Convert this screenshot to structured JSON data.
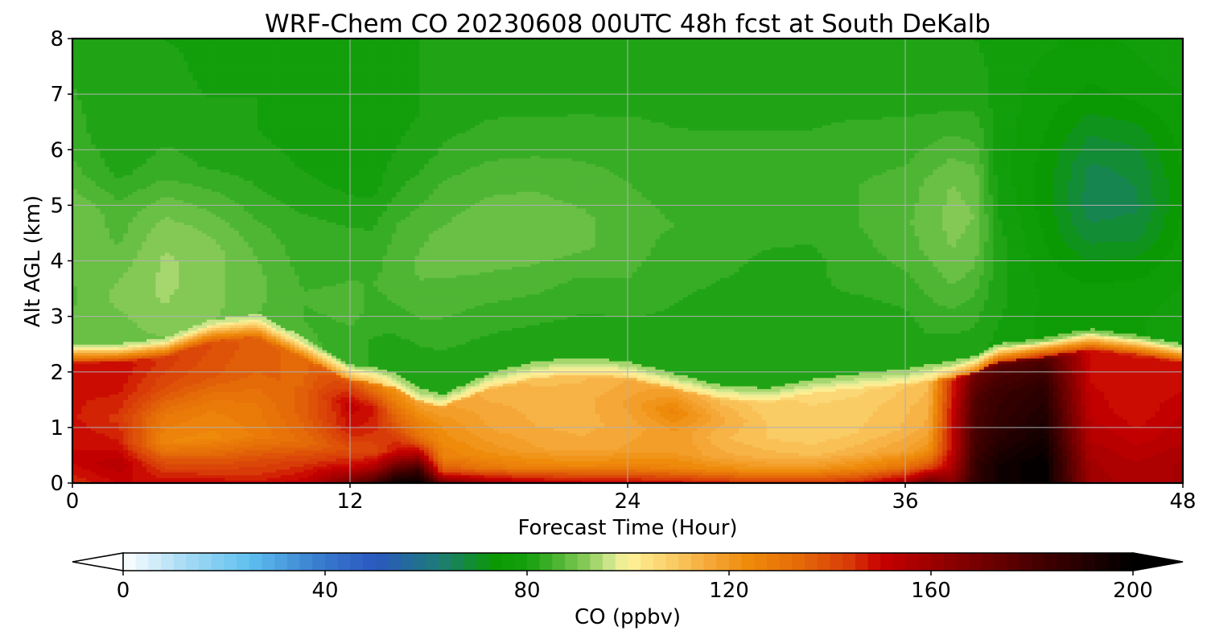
{
  "chart_data": {
    "type": "heatmap",
    "title": "WRF-Chem CO  20230608 00UTC 48h fcst at South DeKalb",
    "xlabel": "Forecast Time (Hour)",
    "ylabel": "Alt AGL (km)",
    "xlim": [
      0,
      48
    ],
    "ylim": [
      0,
      8
    ],
    "xticks": [
      0,
      12,
      24,
      36,
      48
    ],
    "yticks": [
      0,
      1,
      2,
      3,
      4,
      5,
      6,
      7,
      8
    ],
    "grid": true,
    "x_hours": [
      0,
      2,
      4,
      6,
      8,
      10,
      12,
      13,
      14,
      15,
      16,
      18,
      20,
      22,
      24,
      26,
      28,
      30,
      32,
      34,
      36,
      37,
      38,
      39,
      40,
      42,
      44,
      46,
      48
    ],
    "alt_km": [
      0,
      0.1,
      0.3,
      0.6,
      1.0,
      1.4,
      1.8,
      2.0,
      2.2,
      2.4,
      2.6,
      3.0,
      3.5,
      4.0,
      5.0,
      6.0,
      7.0,
      8.0
    ],
    "pbl_top_km": [
      2.35,
      2.35,
      2.45,
      2.75,
      2.85,
      2.45,
      2.0,
      1.95,
      1.85,
      1.6,
      1.5,
      1.85,
      2.05,
      2.12,
      2.05,
      1.85,
      1.65,
      1.6,
      1.75,
      1.85,
      1.92,
      2.0,
      2.05,
      2.15,
      2.35,
      2.45,
      2.6,
      2.5,
      2.35
    ],
    "free_troposphere_ppbv": [
      [
        90,
        88,
        87,
        88,
        90,
        90,
        86,
        84,
        83,
        82,
        82
      ],
      [
        88,
        89,
        91,
        89,
        87,
        86,
        82,
        80,
        80,
        80,
        80
      ],
      [
        89,
        92,
        93,
        93,
        92,
        89,
        84,
        82,
        81,
        81,
        80
      ],
      [
        90,
        91,
        91,
        91,
        89,
        86,
        82,
        81,
        80,
        79,
        79
      ],
      [
        87,
        88,
        88,
        87,
        85,
        83,
        81,
        80,
        80,
        79,
        79
      ],
      [
        86,
        85,
        85,
        84,
        84,
        82,
        80,
        79,
        79,
        79,
        79
      ],
      [
        84,
        84,
        86,
        85,
        84,
        82,
        79,
        78,
        78,
        78,
        78
      ],
      [
        82,
        82,
        84,
        85,
        84,
        82,
        79,
        78,
        78,
        78,
        78
      ],
      [
        80,
        81,
        84,
        86,
        86,
        85,
        82,
        80,
        79,
        79,
        79
      ],
      [
        80,
        81,
        84,
        87,
        88,
        87,
        84,
        81,
        80,
        80,
        80
      ],
      [
        80,
        81,
        84,
        86,
        88,
        88,
        86,
        83,
        81,
        81,
        81
      ],
      [
        80,
        81,
        84,
        86,
        89,
        89,
        87,
        84,
        82,
        81,
        81
      ],
      [
        80,
        81,
        84,
        86,
        89,
        89,
        87,
        84,
        82,
        81,
        81
      ],
      [
        80,
        81,
        83,
        85,
        88,
        88,
        86,
        84,
        82,
        81,
        81
      ],
      [
        80,
        81,
        83,
        85,
        86,
        86,
        85,
        84,
        82,
        81,
        81
      ],
      [
        80,
        81,
        82,
        83,
        84,
        85,
        84,
        83,
        82,
        81,
        80
      ],
      [
        80,
        80,
        81,
        82,
        83,
        84,
        84,
        83,
        82,
        81,
        80
      ],
      [
        80,
        80,
        81,
        82,
        82,
        83,
        83,
        83,
        82,
        81,
        80
      ],
      [
        80,
        80,
        81,
        82,
        82,
        83,
        84,
        83,
        82,
        81,
        80
      ],
      [
        80,
        80,
        81,
        83,
        84,
        85,
        85,
        84,
        82,
        81,
        80
      ],
      [
        80,
        81,
        82,
        84,
        86,
        87,
        86,
        84,
        82,
        81,
        80
      ],
      [
        81,
        82,
        84,
        86,
        88,
        89,
        88,
        85,
        82,
        81,
        81
      ],
      [
        81,
        82,
        85,
        88,
        90,
        91,
        90,
        86,
        82,
        81,
        81
      ],
      [
        80,
        82,
        84,
        87,
        89,
        90,
        89,
        85,
        82,
        81,
        80
      ],
      [
        79,
        80,
        81,
        81,
        81,
        80,
        79,
        79,
        79,
        79,
        79
      ],
      [
        77,
        77,
        77,
        76,
        75,
        74,
        74,
        75,
        76,
        77,
        78
      ],
      [
        76,
        76,
        75,
        72,
        68,
        66,
        67,
        70,
        74,
        76,
        77
      ],
      [
        77,
        77,
        76,
        73,
        69,
        67,
        68,
        71,
        75,
        77,
        78
      ],
      [
        80,
        79,
        78,
        77,
        76,
        75,
        75,
        76,
        77,
        79,
        80
      ]
    ],
    "boundary_layer_ppbv": [
      [
        145,
        150,
        150,
        148,
        148,
        148,
        140
      ],
      [
        150,
        155,
        148,
        144,
        148,
        150,
        144
      ],
      [
        150,
        140,
        125,
        130,
        140,
        144,
        140
      ],
      [
        150,
        138,
        124,
        128,
        138,
        140,
        136
      ],
      [
        148,
        140,
        128,
        130,
        135,
        136,
        130
      ],
      [
        152,
        144,
        133,
        136,
        135,
        134,
        126
      ],
      [
        170,
        150,
        140,
        148,
        152,
        140,
        118
      ],
      [
        182,
        155,
        140,
        146,
        148,
        130,
        112
      ],
      [
        198,
        175,
        150,
        140,
        132,
        122,
        104
      ],
      [
        200,
        185,
        160,
        132,
        126,
        118,
        100
      ],
      [
        172,
        140,
        128,
        124,
        122,
        118,
        104
      ],
      [
        160,
        130,
        122,
        118,
        116,
        114,
        104
      ],
      [
        155,
        126,
        118,
        115,
        114,
        112,
        104
      ],
      [
        152,
        125,
        116,
        114,
        114,
        112,
        105
      ],
      [
        152,
        126,
        118,
        116,
        118,
        115,
        106
      ],
      [
        150,
        126,
        120,
        120,
        126,
        118,
        105
      ],
      [
        148,
        124,
        116,
        113,
        116,
        112,
        104
      ],
      [
        145,
        122,
        114,
        110,
        110,
        108,
        102
      ],
      [
        145,
        121,
        112,
        108,
        108,
        107,
        102
      ],
      [
        148,
        125,
        114,
        110,
        109,
        107,
        102
      ],
      [
        160,
        132,
        118,
        113,
        112,
        110,
        103
      ],
      [
        175,
        140,
        122,
        116,
        114,
        112,
        104
      ],
      [
        165,
        155,
        150,
        150,
        148,
        145,
        118
      ],
      [
        185,
        185,
        182,
        180,
        178,
        172,
        130
      ],
      [
        195,
        195,
        190,
        186,
        184,
        176,
        140
      ],
      [
        200,
        200,
        196,
        192,
        188,
        180,
        148
      ],
      [
        160,
        158,
        155,
        152,
        150,
        150,
        140
      ],
      [
        155,
        155,
        152,
        148,
        148,
        148,
        140
      ],
      [
        158,
        158,
        155,
        153,
        150,
        150,
        142
      ]
    ]
  },
  "colorbar": {
    "label": "CO  (ppbv)",
    "min": 0,
    "max": 200,
    "step": 2.5,
    "ticks": [
      0,
      40,
      80,
      120,
      160,
      200
    ],
    "extend": "both",
    "stops": [
      {
        "v": 0,
        "c": "#ffffff"
      },
      {
        "v": 12,
        "c": "#a8dcf5"
      },
      {
        "v": 25,
        "c": "#5fc0f0"
      },
      {
        "v": 38,
        "c": "#3a7fd0"
      },
      {
        "v": 50,
        "c": "#2a58c0"
      },
      {
        "v": 62,
        "c": "#1e7a7c"
      },
      {
        "v": 74,
        "c": "#0b9a00"
      },
      {
        "v": 80,
        "c": "#159f0f"
      },
      {
        "v": 86,
        "c": "#4cb532"
      },
      {
        "v": 92,
        "c": "#8ccc5a"
      },
      {
        "v": 96,
        "c": "#c8e48a"
      },
      {
        "v": 100,
        "c": "#fff29a"
      },
      {
        "v": 108,
        "c": "#fbd06a"
      },
      {
        "v": 116,
        "c": "#f5a838"
      },
      {
        "v": 124,
        "c": "#ef8a0a"
      },
      {
        "v": 134,
        "c": "#e46a08"
      },
      {
        "v": 144,
        "c": "#d83a08"
      },
      {
        "v": 150,
        "c": "#c80000"
      },
      {
        "v": 165,
        "c": "#880000"
      },
      {
        "v": 180,
        "c": "#4a0000"
      },
      {
        "v": 200,
        "c": "#000000"
      }
    ]
  }
}
